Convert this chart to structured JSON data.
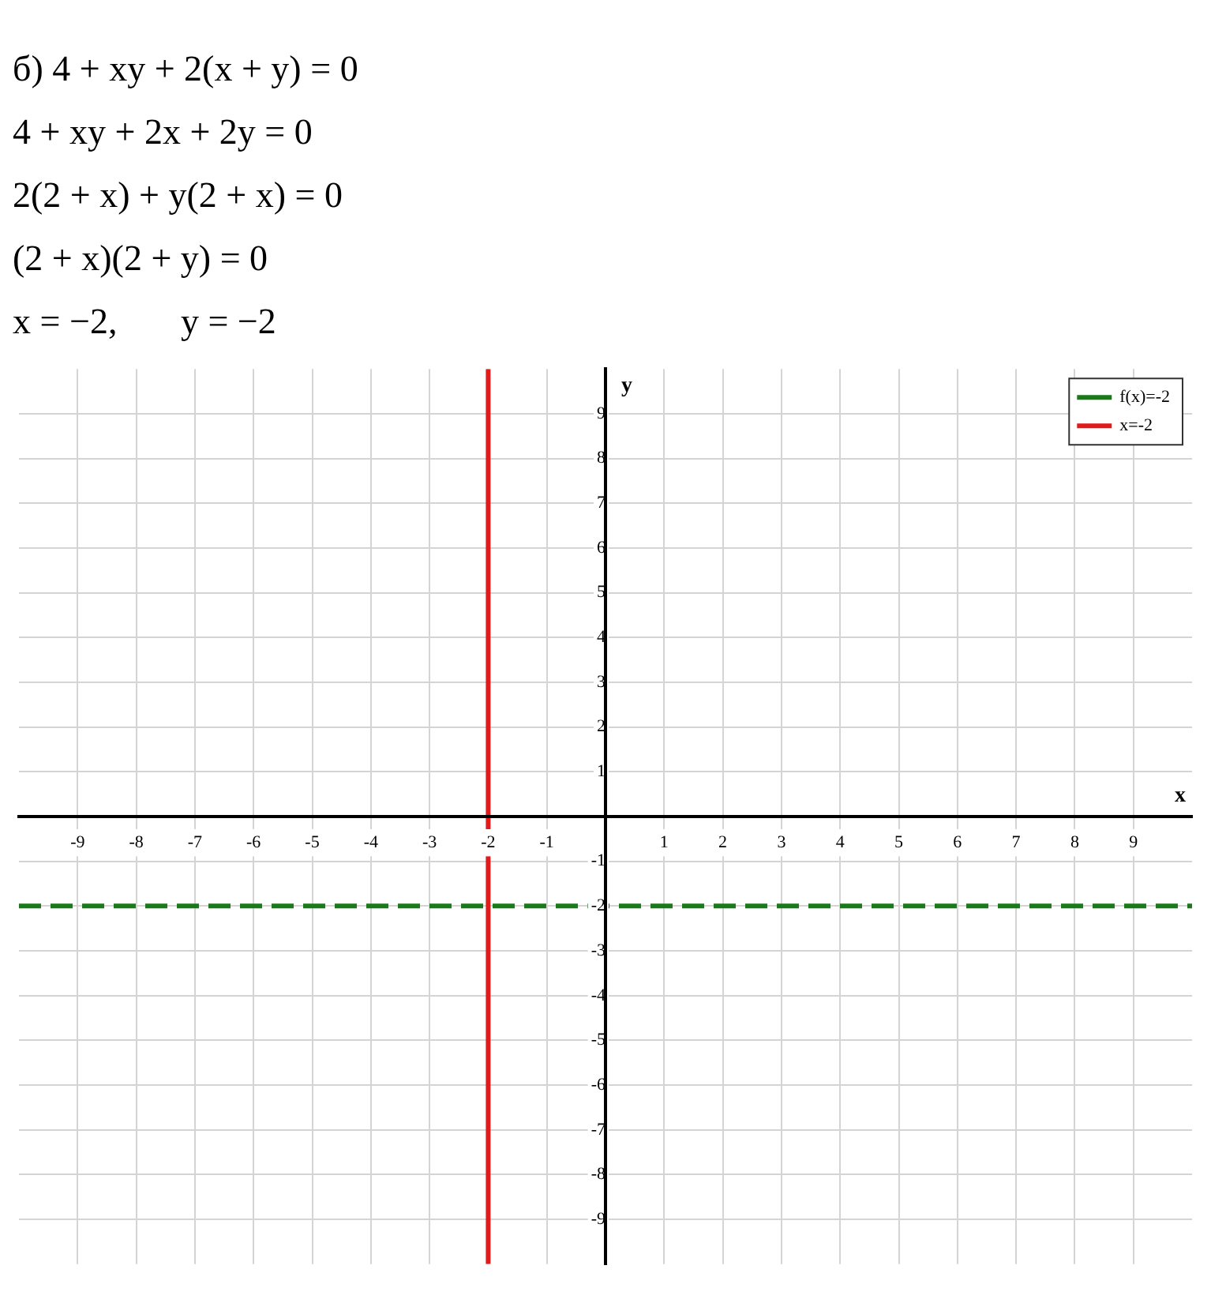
{
  "chart_data": {
    "type": "line",
    "annotations": [
      "б) 4 + xy + 2(x + y) = 0",
      "4 + xy + 2x + 2y = 0",
      "2(2 + x) + y(2 + x) = 0",
      "(2 + x)(2 + y) = 0",
      "x = −2,       y = −2"
    ],
    "xlabel": "x",
    "ylabel": "y",
    "xlim": [
      -10,
      10
    ],
    "ylim": [
      -10,
      10
    ],
    "xticks": [
      -9,
      -8,
      -7,
      -6,
      -5,
      -4,
      -3,
      -2,
      -1,
      1,
      2,
      3,
      4,
      5,
      6,
      7,
      8,
      9
    ],
    "yticks": [
      -9,
      -8,
      -7,
      -6,
      -5,
      -4,
      -3,
      -2,
      -1,
      1,
      2,
      3,
      4,
      5,
      6,
      7,
      8,
      9
    ],
    "grid": true,
    "legend": "top right",
    "marker": "none",
    "series": [
      {
        "name": "f(x)=-2",
        "color": "#1a7a1a",
        "x": [
          -10,
          10
        ],
        "values": [
          -2,
          -2
        ],
        "line_style": "dashed"
      },
      {
        "name": "x=-2",
        "color": "#e01b1b",
        "x": [
          -2,
          -2
        ],
        "values": [
          -10,
          10
        ],
        "line_style": "solid"
      }
    ]
  }
}
